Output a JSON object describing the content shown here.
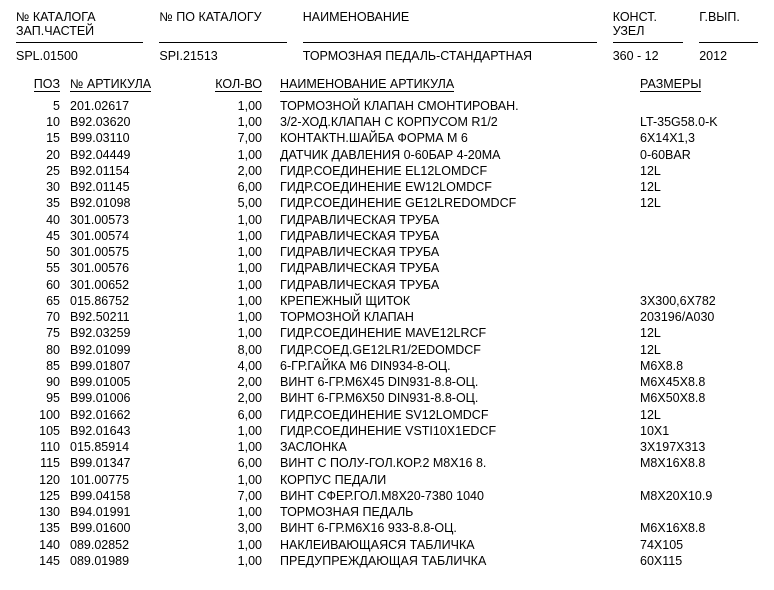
{
  "header": {
    "catalog_label1": "№ КАТАЛОГА",
    "catalog_label2": "ЗАП.ЧАСТЕЙ",
    "catalog_value": "SPL.01500",
    "sku_label": "№ ПО КАТАЛОГУ",
    "sku_value": "SPI.21513",
    "name_label": "НАИМЕНОВАНИЕ",
    "name_value": "ТОРМОЗНАЯ ПЕДАЛЬ-СТАНДАРТНАЯ",
    "node_label": "КОНСТ.",
    "node_label2": "УЗЕЛ",
    "node_value": "360 - 12",
    "year_label": "Г.ВЫП.",
    "year_value": "2012"
  },
  "columns": {
    "pos": "ПОЗ",
    "art": "№ АРТИКУЛА",
    "qty": "КОЛ-ВО",
    "desc": "НАИМЕНОВАНИЕ АРТИКУЛА",
    "size": "РАЗМЕРЫ"
  },
  "rows": [
    {
      "pos": "5",
      "art": "201.02617",
      "qty": "1,00",
      "desc": "ТОРМОЗНОЙ КЛАПАН СМОНТИРОВАН.",
      "size": ""
    },
    {
      "pos": "10",
      "art": "B92.03620",
      "qty": "1,00",
      "desc": "3/2-ХОД.КЛАПАН С КОРПУСОМ R1/2",
      "size": "LT-35G58.0-K"
    },
    {
      "pos": "15",
      "art": "B99.03110",
      "qty": "7,00",
      "desc": "КОНТАКТН.ШАЙБА ФОРМА M 6",
      "size": "6X14X1,3"
    },
    {
      "pos": "20",
      "art": "B92.04449",
      "qty": "1,00",
      "desc": "ДАТЧИК ДАВЛЕНИЯ 0-60БАР 4-20МА",
      "size": "0-60BAR"
    },
    {
      "pos": "25",
      "art": "B92.01154",
      "qty": "2,00",
      "desc": "ГИДР.СОЕДИНЕНИЕ EL12LOMDCF",
      "size": "12L"
    },
    {
      "pos": "30",
      "art": "B92.01145",
      "qty": "6,00",
      "desc": "ГИДР.СОЕДИНЕНИЕ EW12LOMDCF",
      "size": "12L"
    },
    {
      "pos": "35",
      "art": "B92.01098",
      "qty": "5,00",
      "desc": "ГИДР.СОЕДИНЕНИЕ GE12LREDOMDCF",
      "size": "12L"
    },
    {
      "pos": "40",
      "art": "301.00573",
      "qty": "1,00",
      "desc": "ГИДРАВЛИЧЕСКАЯ ТРУБА",
      "size": ""
    },
    {
      "pos": "45",
      "art": "301.00574",
      "qty": "1,00",
      "desc": "ГИДРАВЛИЧЕСКАЯ ТРУБА",
      "size": ""
    },
    {
      "pos": "50",
      "art": "301.00575",
      "qty": "1,00",
      "desc": "ГИДРАВЛИЧЕСКАЯ ТРУБА",
      "size": ""
    },
    {
      "pos": "55",
      "art": "301.00576",
      "qty": "1,00",
      "desc": "ГИДРАВЛИЧЕСКАЯ ТРУБА",
      "size": ""
    },
    {
      "pos": "60",
      "art": "301.00652",
      "qty": "1,00",
      "desc": "ГИДРАВЛИЧЕСКАЯ ТРУБА",
      "size": ""
    },
    {
      "pos": "65",
      "art": "015.86752",
      "qty": "1,00",
      "desc": "КРЕПЕЖНЫЙ ЩИТОК",
      "size": "3X300,6X782"
    },
    {
      "pos": "70",
      "art": "B92.50211",
      "qty": "1,00",
      "desc": "ТОРМОЗНОЙ КЛАПАН",
      "size": "203196/A030"
    },
    {
      "pos": "75",
      "art": "B92.03259",
      "qty": "1,00",
      "desc": "ГИДР.СОЕДИНЕНИЕ MAVE12LRCF",
      "size": "12L"
    },
    {
      "pos": "80",
      "art": "B92.01099",
      "qty": "8,00",
      "desc": "ГИДР.СОЕД.GE12LR1/2EDOMDCF",
      "size": "12L"
    },
    {
      "pos": "85",
      "art": "B99.01807",
      "qty": "4,00",
      "desc": "6-ГР.ГАЙКА M6 DIN934-8-ОЦ.",
      "size": "M6X8.8"
    },
    {
      "pos": "90",
      "art": "B99.01005",
      "qty": "2,00",
      "desc": "ВИНТ 6-ГР.M6X45 DIN931-8.8-ОЦ.",
      "size": "M6X45X8.8"
    },
    {
      "pos": "95",
      "art": "B99.01006",
      "qty": "2,00",
      "desc": "ВИНТ 6-ГР.M6X50 DIN931-8.8-ОЦ.",
      "size": "M6X50X8.8"
    },
    {
      "pos": "100",
      "art": "B92.01662",
      "qty": "6,00",
      "desc": "ГИДР.СОЕДИНЕНИЕ SV12LOMDCF",
      "size": "12L"
    },
    {
      "pos": "105",
      "art": "B92.01643",
      "qty": "1,00",
      "desc": "ГИДР.СОЕДИНЕНИЕ VSTI10X1EDCF",
      "size": "10X1"
    },
    {
      "pos": "110",
      "art": "015.85914",
      "qty": "1,00",
      "desc": "ЗАСЛОНКА",
      "size": "3X197X313"
    },
    {
      "pos": "115",
      "art": "B99.01347",
      "qty": "6,00",
      "desc": "ВИНТ С ПОЛУ-ГОЛ.КОР.2 M8X16 8.",
      "size": "M8X16X8.8"
    },
    {
      "pos": "120",
      "art": "101.00775",
      "qty": "1,00",
      "desc": "КОРПУС ПЕДАЛИ",
      "size": ""
    },
    {
      "pos": "125",
      "art": "B99.04158",
      "qty": "7,00",
      "desc": "ВИНТ СФЕР.ГОЛ.M8X20-7380 1040",
      "size": "M8X20X10.9"
    },
    {
      "pos": "130",
      "art": "B94.01991",
      "qty": "1,00",
      "desc": "ТОРМОЗНАЯ ПЕДАЛЬ",
      "size": ""
    },
    {
      "pos": "135",
      "art": "B99.01600",
      "qty": "3,00",
      "desc": "ВИНТ 6-ГР.M6X16 933-8.8-ОЦ.",
      "size": "M6X16X8.8"
    },
    {
      "pos": "140",
      "art": "089.02852",
      "qty": "1,00",
      "desc": "НАКЛЕИВАЮЩАЯСЯ ТАБЛИЧКА",
      "size": "74X105"
    },
    {
      "pos": "145",
      "art": "089.01989",
      "qty": "1,00",
      "desc": "ПРЕДУПРЕЖДАЮЩАЯ ТАБЛИЧКА",
      "size": "60X115"
    }
  ]
}
